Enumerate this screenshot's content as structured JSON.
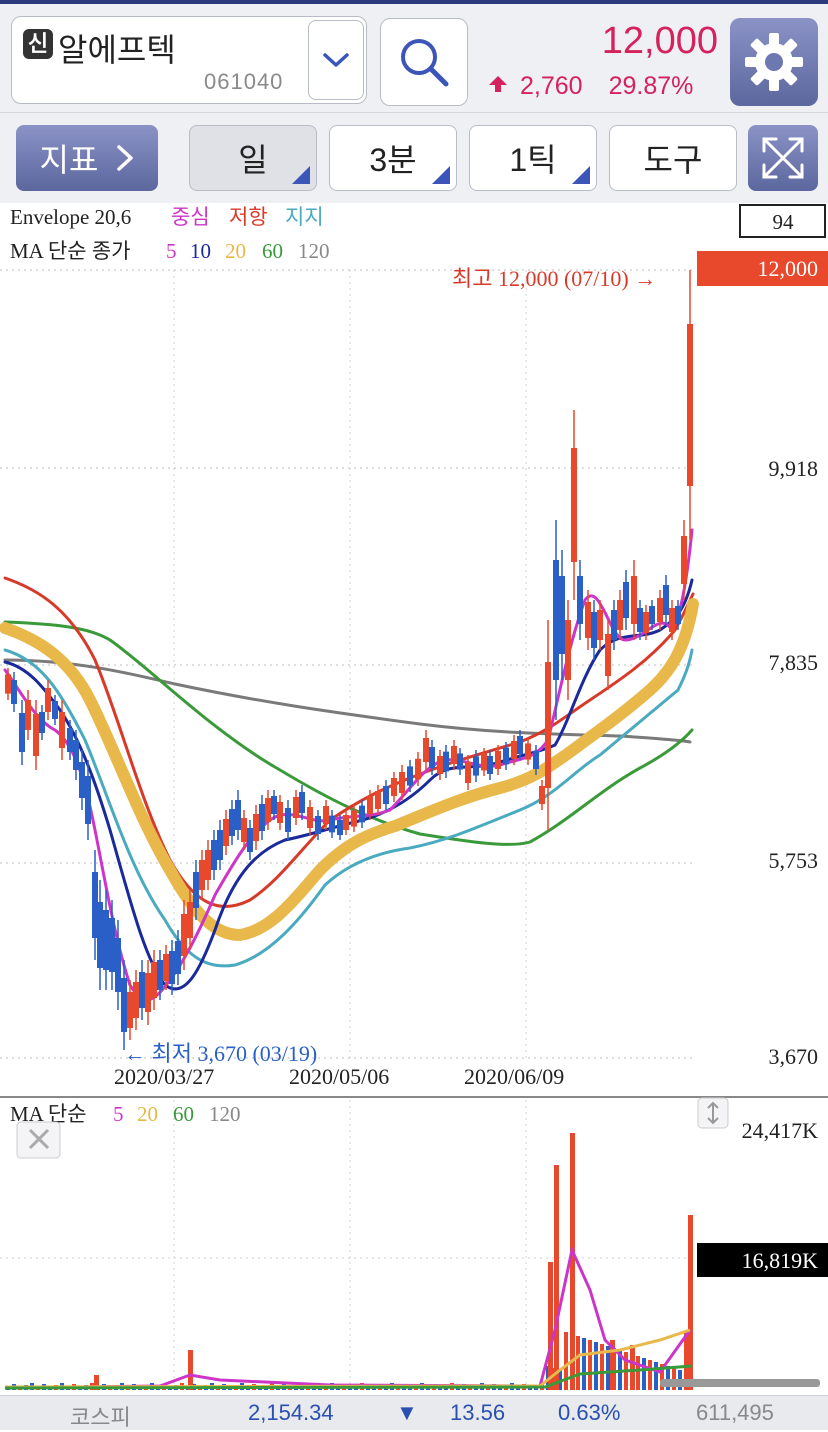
{
  "header": {
    "badge": "신",
    "stock_name": "알에프텍",
    "stock_code": "061040",
    "price": "12,000",
    "change_amount": "2,760",
    "change_percent": "29.87%",
    "change_direction": "up",
    "up_color": "#d5215c"
  },
  "toolbar": {
    "indicator_label": "지표",
    "period_day": "일",
    "period_min": "3분",
    "period_tick": "1틱",
    "tools": "도구"
  },
  "price_chart": {
    "legend_line1": {
      "name": "Envelope 20,6",
      "center": "중심",
      "resist": "저항",
      "support": "지지"
    },
    "legend_line2": {
      "name": "MA 단순 종가",
      "p5": "5",
      "p10": "10",
      "p20": "20",
      "p60": "60",
      "p120": "120"
    },
    "count_box": "94",
    "high_label": "최고 12,000 (07/10) →",
    "high_tag": "12,000",
    "low_label": "← 최저 3,670 (03/19)",
    "y_ticks": [
      "9,918",
      "7,835",
      "5,753",
      "3,670"
    ],
    "x_ticks": [
      "2020/03/27",
      "2020/05/06",
      "2020/06/09"
    ],
    "colors": {
      "up": "#e8482c",
      "down": "#2a5fc8",
      "ma5": "#cc35c8",
      "ma10": "#1a2a9a",
      "ma20": "#e8b84a",
      "ma60": "#3a9a3a",
      "ma120": "#7a7a7a",
      "env_upper": "#d83a2a",
      "env_lower": "#4aaac0"
    }
  },
  "volume_chart": {
    "legend": {
      "name": "MA 단순",
      "p5": "5",
      "p20": "20",
      "p60": "60",
      "p120": "120"
    },
    "y_max": "24,417K",
    "current_tag": "16,819K"
  },
  "status_bar": {
    "index_name": "코스피",
    "index_value": "2,154.34",
    "arrow": "▼",
    "index_change": "13.56",
    "index_percent": "0.63%",
    "volume": "611,495"
  },
  "chart_data": {
    "type": "candlestick",
    "period": "daily",
    "ylim": [
      3670,
      12000
    ],
    "high": {
      "value": 12000,
      "date": "07/10"
    },
    "low": {
      "value": 3670,
      "date": "03/19"
    },
    "x_ticks": [
      "2020/03/27",
      "2020/05/06",
      "2020/06/09"
    ],
    "volume_max": "24,417K",
    "volume_last": "16,819K"
  }
}
